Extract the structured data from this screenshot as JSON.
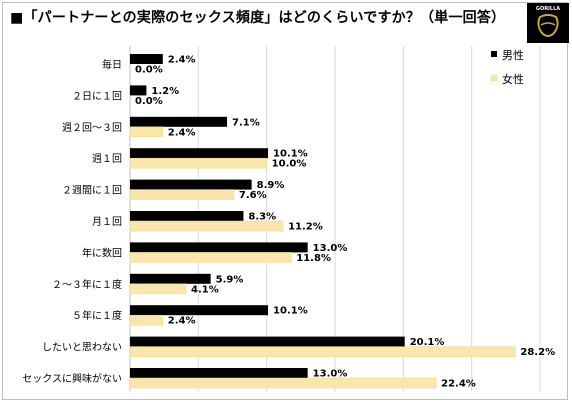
{
  "title": "■「パートナーとの実際のセックス頻度」はどのくらいですか？（単一回答）",
  "logo": {
    "text": "GORILLA",
    "icon": "gorilla-logo-icon"
  },
  "colors": {
    "male": "#000000",
    "female": "#f9e6ad",
    "grid": "#d9d9d9"
  },
  "chart_data": {
    "type": "bar",
    "orientation": "horizontal",
    "title": "■「パートナーとの実際のセックス頻度」はどのくらいですか？（単一回答）",
    "categories": [
      "毎日",
      "２日に１回",
      "週２回～３回",
      "週１回",
      "２週間に１回",
      "月１回",
      "年に数回",
      "２～３年に１度",
      "５年に１度",
      "したいと思わない",
      "セックスに興味がない"
    ],
    "series": [
      {
        "name": "男性",
        "color": "#000000",
        "values": [
          2.4,
          1.2,
          7.1,
          10.1,
          8.9,
          8.3,
          13.0,
          5.9,
          10.1,
          20.1,
          13.0
        ],
        "labels": [
          "2.4%",
          "1.2%",
          "7.1%",
          "10.1%",
          "8.9%",
          "8.3%",
          "13.0%",
          "5.9%",
          "10.1%",
          "20.1%",
          "13.0%"
        ]
      },
      {
        "name": "女性",
        "color": "#f9e6ad",
        "values": [
          0.0,
          0.0,
          2.4,
          10.0,
          7.6,
          11.2,
          11.8,
          4.1,
          2.4,
          28.2,
          22.4
        ],
        "labels": [
          "0.0%",
          "0.0%",
          "2.4%",
          "10.0%",
          "7.6%",
          "11.2%",
          "11.8%",
          "4.1%",
          "2.4%",
          "28.2%",
          "22.4%"
        ]
      }
    ],
    "xlim": [
      0,
      30
    ],
    "grid": true,
    "legend": "top-right"
  }
}
